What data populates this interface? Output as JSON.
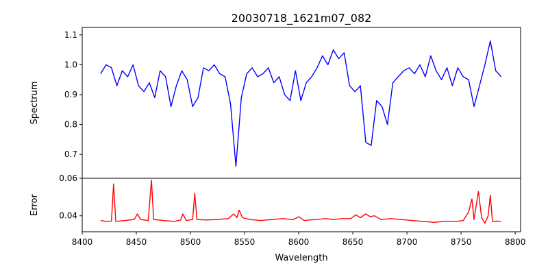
{
  "chart_data": [
    {
      "type": "line",
      "title": "20030718_1621m07_082",
      "xlabel": "",
      "ylabel": "Spectrum",
      "xlim": [
        8400,
        8805
      ],
      "ylim": [
        0.62,
        1.125
      ],
      "xticks": [
        8400,
        8450,
        8500,
        8550,
        8600,
        8650,
        8700,
        8750,
        8800
      ],
      "yticks": [
        0.7,
        0.8,
        0.9,
        1.0,
        1.1
      ],
      "ytick_labels": [
        "0.7",
        "0.8",
        "0.9",
        "1.0",
        "1.1"
      ],
      "color": "#0000ff",
      "x_start": 8417,
      "x_step": 5,
      "values": [
        0.97,
        1.0,
        0.99,
        0.93,
        0.98,
        0.96,
        1.0,
        0.93,
        0.91,
        0.94,
        0.89,
        0.98,
        0.96,
        0.86,
        0.93,
        0.98,
        0.95,
        0.86,
        0.89,
        0.99,
        0.98,
        1.0,
        0.97,
        0.96,
        0.87,
        0.66,
        0.89,
        0.97,
        0.99,
        0.96,
        0.97,
        0.99,
        0.94,
        0.96,
        0.9,
        0.88,
        0.98,
        0.88,
        0.94,
        0.96,
        0.99,
        1.03,
        1.0,
        1.05,
        1.02,
        1.04,
        0.93,
        0.91,
        0.93,
        0.74,
        0.73,
        0.88,
        0.86,
        0.8,
        0.94,
        0.96,
        0.98,
        0.99,
        0.97,
        1.0,
        0.96,
        1.03,
        0.98,
        0.95,
        0.99,
        0.93,
        0.99,
        0.96,
        0.95,
        0.86,
        0.93,
        1.0,
        1.08,
        0.98,
        0.96
      ]
    },
    {
      "type": "line",
      "xlabel": "Wavelength",
      "ylabel": "Error",
      "xlim": [
        8400,
        8805
      ],
      "ylim": [
        0.0315,
        0.06
      ],
      "xticks": [
        8400,
        8450,
        8500,
        8550,
        8600,
        8650,
        8700,
        8750,
        8800
      ],
      "xtick_labels": [
        "8400",
        "8450",
        "8500",
        "8550",
        "8600",
        "8650",
        "8700",
        "8750",
        "8800"
      ],
      "yticks": [
        0.04,
        0.06
      ],
      "ytick_labels": [
        "0.04",
        "0.06"
      ],
      "color": "#ff0000",
      "points": [
        [
          8417,
          0.0375
        ],
        [
          8422,
          0.037
        ],
        [
          8427,
          0.0372
        ],
        [
          8429,
          0.057
        ],
        [
          8431,
          0.037
        ],
        [
          8440,
          0.0375
        ],
        [
          8448,
          0.038
        ],
        [
          8451,
          0.041
        ],
        [
          8454,
          0.038
        ],
        [
          8461,
          0.0375
        ],
        [
          8464,
          0.059
        ],
        [
          8466,
          0.038
        ],
        [
          8475,
          0.0375
        ],
        [
          8485,
          0.037
        ],
        [
          8491,
          0.0378
        ],
        [
          8493,
          0.041
        ],
        [
          8496,
          0.0375
        ],
        [
          8502,
          0.038
        ],
        [
          8504,
          0.052
        ],
        [
          8506,
          0.038
        ],
        [
          8515,
          0.0378
        ],
        [
          8525,
          0.038
        ],
        [
          8535,
          0.0385
        ],
        [
          8540,
          0.041
        ],
        [
          8543,
          0.039
        ],
        [
          8545,
          0.043
        ],
        [
          8548,
          0.039
        ],
        [
          8555,
          0.038
        ],
        [
          8565,
          0.0375
        ],
        [
          8575,
          0.038
        ],
        [
          8585,
          0.0385
        ],
        [
          8595,
          0.038
        ],
        [
          8600,
          0.0395
        ],
        [
          8605,
          0.0375
        ],
        [
          8615,
          0.038
        ],
        [
          8625,
          0.0385
        ],
        [
          8632,
          0.038
        ],
        [
          8640,
          0.0385
        ],
        [
          8648,
          0.0385
        ],
        [
          8653,
          0.0405
        ],
        [
          8657,
          0.039
        ],
        [
          8662,
          0.041
        ],
        [
          8666,
          0.0395
        ],
        [
          8670,
          0.04
        ],
        [
          8676,
          0.038
        ],
        [
          8685,
          0.0385
        ],
        [
          8695,
          0.038
        ],
        [
          8705,
          0.0375
        ],
        [
          8715,
          0.037
        ],
        [
          8725,
          0.0365
        ],
        [
          8735,
          0.037
        ],
        [
          8745,
          0.037
        ],
        [
          8752,
          0.0375
        ],
        [
          8757,
          0.042
        ],
        [
          8760,
          0.049
        ],
        [
          8762,
          0.038
        ],
        [
          8766,
          0.053
        ],
        [
          8769,
          0.039
        ],
        [
          8772,
          0.036
        ],
        [
          8775,
          0.04
        ],
        [
          8777,
          0.051
        ],
        [
          8779,
          0.037
        ],
        [
          8783,
          0.0372
        ],
        [
          8787,
          0.037
        ]
      ]
    }
  ]
}
